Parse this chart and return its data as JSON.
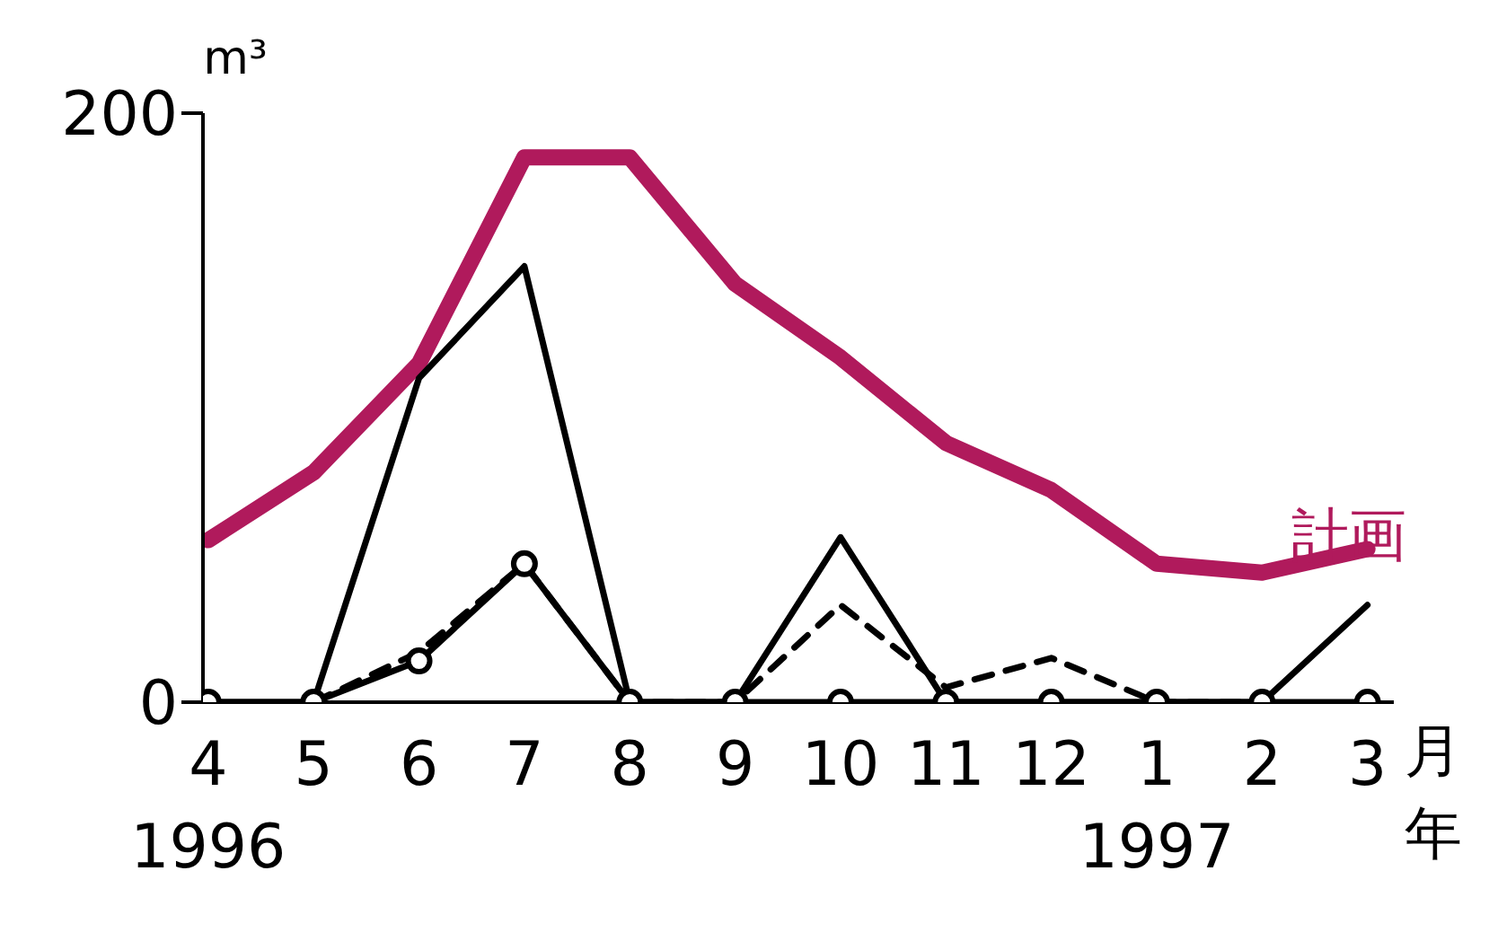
{
  "chart_data": {
    "type": "line",
    "ylabel": "m³",
    "xlabel": "月",
    "annotations": [
      "年"
    ],
    "categories": [
      "4\n1996",
      "5",
      "6",
      "7",
      "8",
      "9",
      "10",
      "11",
      "12",
      "1\n1997",
      "2",
      "3"
    ],
    "ylim": [
      0,
      200
    ],
    "yticks": [
      0,
      200
    ],
    "grid": false,
    "legend": false,
    "series": [
      {
        "name": "計画",
        "color": "#b01a5c",
        "values": [
          55,
          78,
          115,
          185,
          185,
          142,
          117,
          88,
          72,
          47,
          44,
          52
        ],
        "line_style": "solid",
        "marker": "none"
      },
      {
        "color": "#000000",
        "values": [
          0,
          0,
          14,
          47,
          0,
          0,
          0,
          0,
          0,
          0,
          0,
          0
        ],
        "line_style": "solid",
        "marker": "circle"
      },
      {
        "color": "#000000",
        "values": [
          0,
          0,
          110,
          148,
          0,
          0,
          56,
          0,
          0,
          0,
          0,
          33
        ],
        "line_style": "solid",
        "marker": "none"
      },
      {
        "color": "#000000",
        "values": [
          null,
          0,
          17,
          47,
          0,
          0,
          33,
          5,
          15,
          0,
          0,
          null
        ],
        "line_style": "dashed",
        "marker": "none"
      }
    ]
  }
}
